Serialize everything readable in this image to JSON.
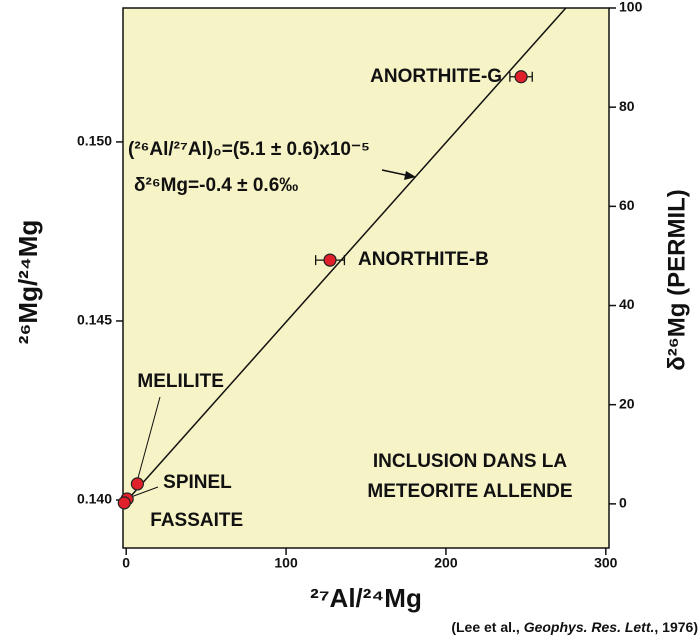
{
  "chart_data": {
    "type": "scatter",
    "xlabel": "²⁷Al/²⁴Mg",
    "ylabel": "²⁶Mg/²⁴Mg",
    "y2label": "δ²⁶Mg (PERMIL)",
    "point_labels": [
      "ANORTHITE-G",
      "ANORTHITE-B",
      "MELILITE",
      "SPINEL",
      "FASSAITE"
    ],
    "x": [
      247,
      127.5,
      7,
      0.6,
      -1.2
    ],
    "values": [
      0.15182,
      0.1467,
      0.14045,
      0.14003,
      0.13992
    ],
    "xerr": [
      7,
      9,
      null,
      null,
      null
    ],
    "color": "#e0202a",
    "fit_line": {
      "x": [
        -2,
        275
      ],
      "y": [
        0.13986,
        0.15374
      ]
    },
    "xlim": [
      -2,
      302
    ],
    "ylim": [
      0.13866,
      0.15374
    ],
    "y2lim": [
      -8.9,
      100
    ],
    "xticks": [
      0,
      100,
      200,
      300
    ],
    "yticks": [
      {
        "value": 0.14,
        "label": "0.140"
      },
      0.145,
      {
        "value": 0.15,
        "label": "0.150"
      }
    ],
    "y2ticks": [
      0,
      20,
      40,
      60,
      80,
      100
    ],
    "annotations": [
      "(²⁶Al/²⁷Al)₀=(5.1 ± 0.6)x10⁻⁵",
      "δ²⁶Mg=-0.4 ± 0.6‰"
    ],
    "inset_text": [
      "INCLUSION DANS LA",
      "METEORITE ALLENDE"
    ],
    "citation": [
      "(Lee et al., ",
      "Geophys. Res. Lett.",
      ", 1976)"
    ]
  }
}
